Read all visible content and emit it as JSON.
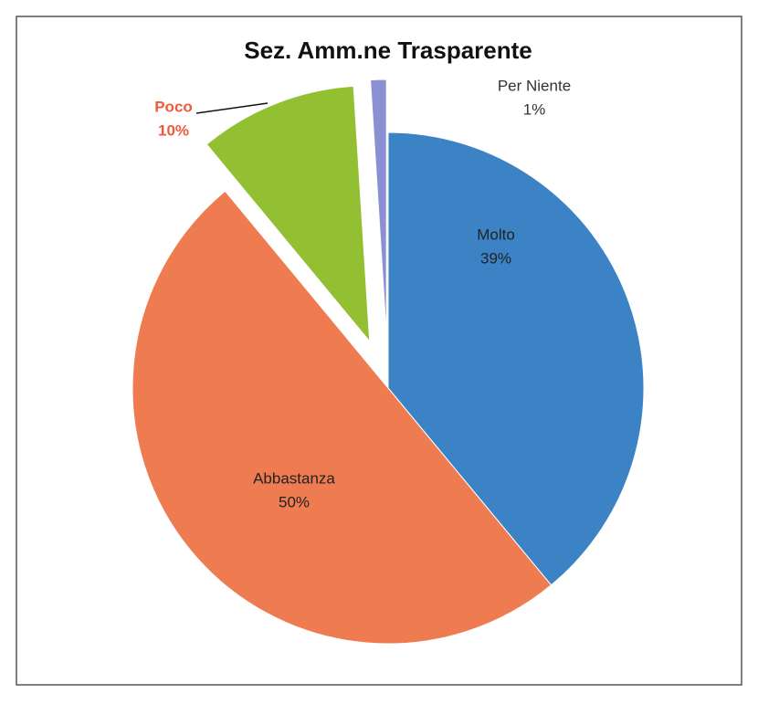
{
  "chart_data": {
    "type": "pie",
    "title": "Sez. Amm.ne Trasparente",
    "categories": [
      "Molto",
      "Abbastanza",
      "Poco",
      "Per Niente"
    ],
    "values": [
      39,
      50,
      10,
      1
    ],
    "value_labels": [
      "39%",
      "50%",
      "10%",
      "1%"
    ],
    "colors": [
      "#3b83c5",
      "#ef7b51",
      "#93c032",
      "#8b90d2"
    ]
  }
}
